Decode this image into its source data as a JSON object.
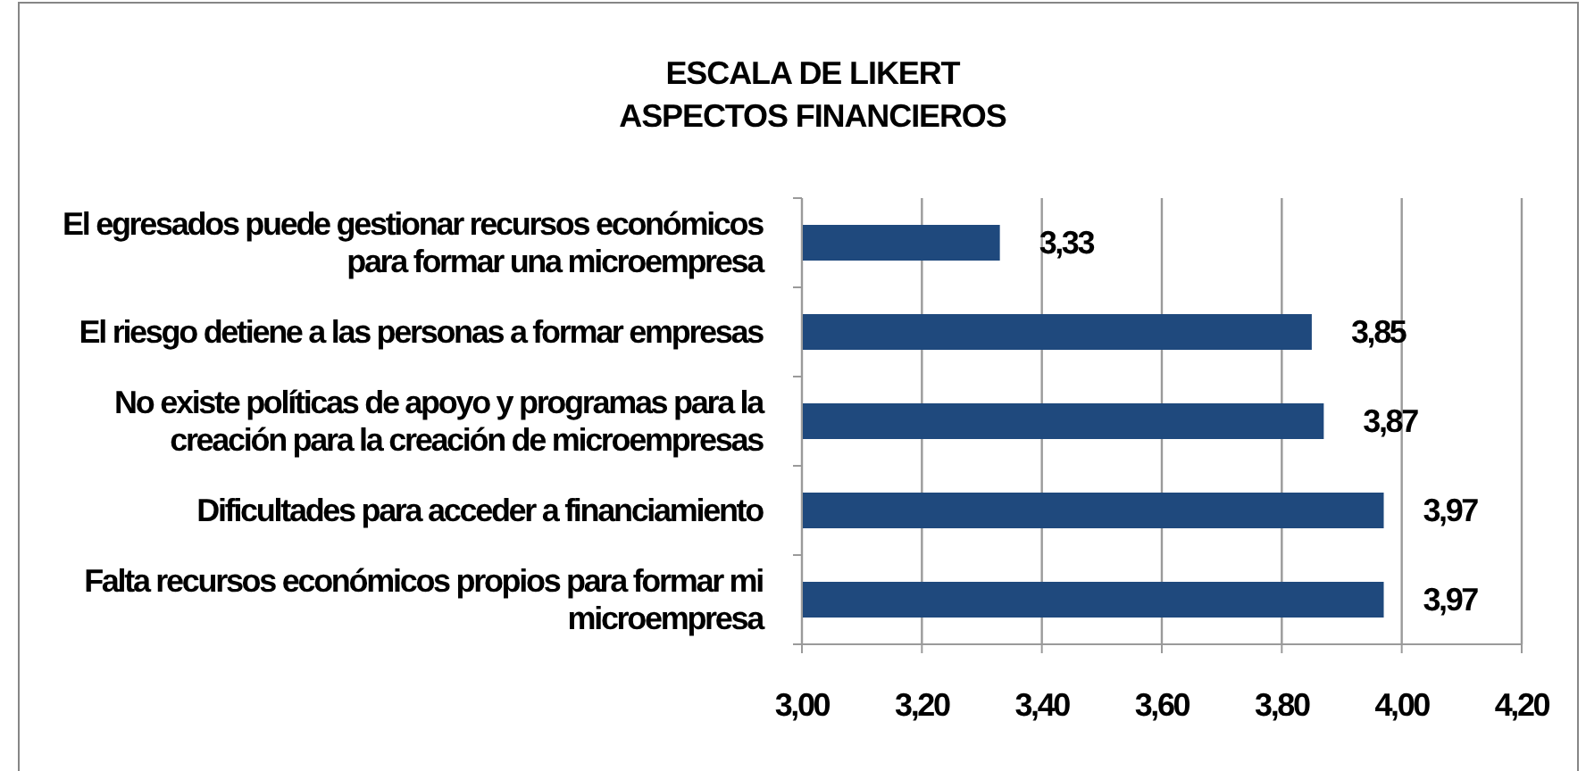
{
  "chart_data": {
    "type": "bar",
    "orientation": "horizontal",
    "title": "ESCALA DE LIKERT",
    "subtitle": "ASPECTOS FINANCIEROS",
    "categories": [
      "El egresados puede gestionar recursos económicos para formar una microempresa",
      "El riesgo detiene a las personas a formar empresas",
      "No existe políticas de apoyo y programas para la creación para la creación de microempresas",
      "Dificultades para acceder a financiamiento",
      "Falta recursos económicos propios para formar mi microempresa"
    ],
    "values": [
      3.33,
      3.85,
      3.87,
      3.97,
      3.97
    ],
    "color": "#1f497d",
    "value_labels": [
      "3,33",
      "3,85",
      "3,87",
      "3,97",
      "3,97"
    ],
    "xlim": [
      3,
      4.2
    ],
    "xticks": [
      {
        "value": 3,
        "label": "3,00"
      },
      {
        "value": 3.2,
        "label": "3,20"
      },
      {
        "value": 3.4,
        "label": "3,40"
      },
      {
        "value": 3.6,
        "label": "3,60"
      },
      {
        "value": 3.8,
        "label": "3,80"
      },
      {
        "value": 4,
        "label": "4,00"
      },
      {
        "value": 4.2,
        "label": "4,20"
      }
    ],
    "grid": "x"
  }
}
